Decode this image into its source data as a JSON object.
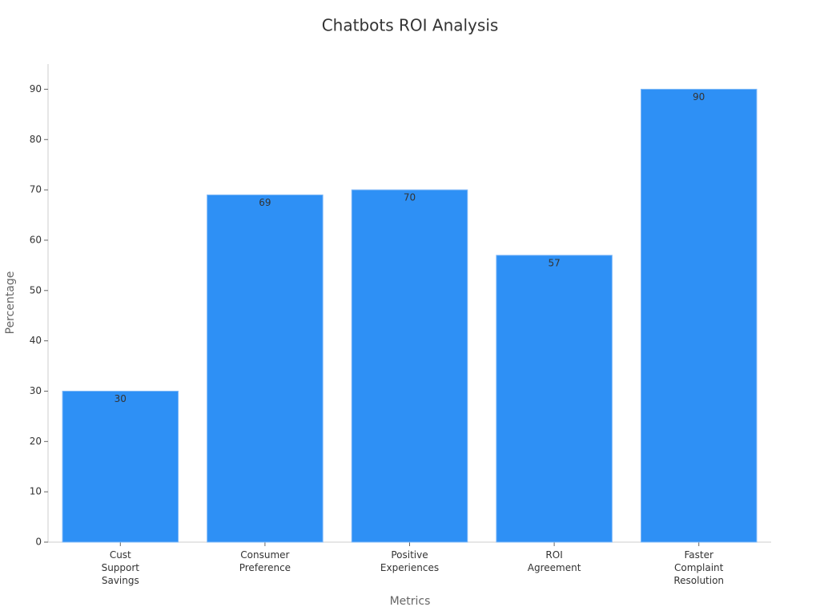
{
  "chart_data": {
    "type": "bar",
    "title": "Chatbots ROI Analysis",
    "x_label": "Metrics",
    "y_label": "Percentage",
    "categories": [
      "Cust Support Savings",
      "Consumer Preference",
      "Positive Experiences",
      "ROI Agreement",
      "Faster Complaint Resolution"
    ],
    "values": [
      30,
      69,
      70,
      57,
      90
    ],
    "color": "#2e90f5",
    "ylim": [
      0,
      95
    ],
    "yticks": [
      0,
      10,
      20,
      30,
      40,
      50,
      60,
      70,
      80,
      90
    ],
    "grid": false
  }
}
